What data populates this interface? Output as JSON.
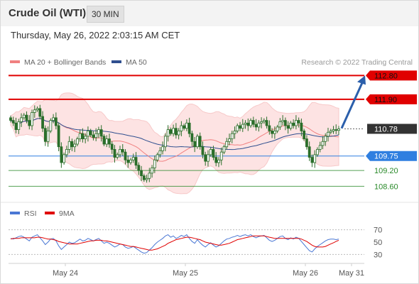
{
  "header": {
    "instrument": "Crude Oil (WTI)",
    "interval": "30 MIN",
    "timestamp": "Thursday, May 26, 2022 2:03:15 AM CET"
  },
  "legend": {
    "items": [
      {
        "label": "MA 20 + Bollinger Bands",
        "color": "#f08080"
      },
      {
        "label": "MA 50",
        "color": "#2f4f8f"
      }
    ],
    "credit": "Research © 2022 Trading Central"
  },
  "indicator_legend": {
    "items": [
      {
        "label": "RSI",
        "color": "#4a77d4"
      },
      {
        "label": "9MA",
        "color": "#e00000"
      }
    ]
  },
  "chart_data": [
    {
      "type": "candlestick",
      "x_labels": [
        "May 24",
        "May 25",
        "May 26",
        "May 31"
      ],
      "ylim": [
        108.1,
        113.0
      ],
      "current_price": 110.78,
      "levels": [
        {
          "value": 112.8,
          "label": "112.80",
          "color": "#e00000",
          "style": "tag"
        },
        {
          "value": 111.9,
          "label": "111.90",
          "color": "#e00000",
          "style": "tag"
        },
        {
          "value": 110.78,
          "label": "110.78",
          "color": "#333333",
          "style": "current"
        },
        {
          "value": 109.75,
          "label": "109.75",
          "color": "#2f7fe0",
          "style": "tag"
        },
        {
          "value": 109.2,
          "label": "109.20",
          "color": "#2a8a2a",
          "style": "text"
        },
        {
          "value": 108.6,
          "label": "108.60",
          "color": "#2a8a2a",
          "style": "text"
        }
      ],
      "projection": {
        "from": 110.8,
        "to": 112.8,
        "color": "#2b5fab"
      },
      "candles_close": [
        111.1,
        111.0,
        110.75,
        111.05,
        111.2,
        111.3,
        111.1,
        110.9,
        111.4,
        111.5,
        111.55,
        111.25,
        110.8,
        110.3,
        110.7,
        111.1,
        111.2,
        110.9,
        110.1,
        109.5,
        109.8,
        110.0,
        110.3,
        110.1,
        110.2,
        110.4,
        110.6,
        110.4,
        110.5,
        110.7,
        110.55,
        110.45,
        110.6,
        110.75,
        110.5,
        110.2,
        110.4,
        110.2,
        110.0,
        109.7,
        109.8,
        110.0,
        109.9,
        109.6,
        109.5,
        109.6,
        109.7,
        109.4,
        109.2,
        109.0,
        108.85,
        108.9,
        109.1,
        109.3,
        109.6,
        109.8,
        109.95,
        110.1,
        110.5,
        110.75,
        110.6,
        110.8,
        110.55,
        110.7,
        110.9,
        110.8,
        111.0,
        110.6,
        110.3,
        110.1,
        110.5,
        110.1,
        109.8,
        109.55,
        109.8,
        110.0,
        109.7,
        109.5,
        109.6,
        109.9,
        110.1,
        110.3,
        110.4,
        110.6,
        110.7,
        110.9,
        110.8,
        110.95,
        111.0,
        110.9,
        111.1,
        110.95,
        110.85,
        111.0,
        111.05,
        111.1,
        110.9,
        110.7,
        110.6,
        110.7,
        110.85,
        111.05,
        111.1,
        110.9,
        110.8,
        111.0,
        110.9,
        111.1,
        111.0,
        110.7,
        110.4,
        110.1,
        109.7,
        109.5,
        109.8,
        110.0,
        110.15,
        110.3,
        110.5,
        110.65,
        110.7,
        110.75,
        110.72,
        110.78
      ]
    },
    {
      "type": "line",
      "x_labels": [
        "May 24",
        "May 25",
        "May 26",
        "May 31"
      ],
      "ylim": [
        20,
        80
      ],
      "y_ticks": [
        70,
        50,
        30
      ],
      "series": [
        {
          "name": "RSI",
          "color": "#4a77d4",
          "values": [
            56,
            55,
            57,
            59,
            60,
            58,
            55,
            52,
            58,
            60,
            62,
            57,
            52,
            46,
            50,
            55,
            56,
            52,
            44,
            38,
            42,
            46,
            50,
            48,
            49,
            52,
            55,
            52,
            53,
            56,
            54,
            52,
            54,
            56,
            52,
            48,
            50,
            48,
            45,
            42,
            44,
            47,
            46,
            42,
            40,
            41,
            43,
            40,
            37,
            34,
            32,
            33,
            37,
            41,
            46,
            50,
            53,
            56,
            60,
            62,
            58,
            60,
            56,
            58,
            61,
            59,
            62,
            56,
            51,
            48,
            54,
            49,
            45,
            42,
            46,
            49,
            45,
            42,
            44,
            48,
            52,
            55,
            56,
            58,
            59,
            61,
            59,
            61,
            62,
            60,
            62,
            59,
            57,
            59,
            60,
            61,
            57,
            53,
            51,
            53,
            56,
            59,
            60,
            56,
            54,
            57,
            55,
            58,
            56,
            51,
            46,
            41,
            36,
            34,
            39,
            43,
            46,
            49,
            52,
            54,
            55,
            55,
            54,
            55
          ]
        },
        {
          "name": "9MA",
          "color": "#e00000",
          "values": [
            55,
            56,
            56,
            56,
            57,
            57,
            57,
            57,
            57,
            57,
            58,
            58,
            57,
            56,
            55,
            55,
            54,
            53,
            51,
            50,
            49,
            48,
            47,
            47,
            47,
            47,
            48,
            49,
            50,
            51,
            52,
            52,
            53,
            53,
            53,
            52,
            52,
            51,
            50,
            49,
            48,
            47,
            46,
            45,
            44,
            43,
            43,
            42,
            41,
            40,
            39,
            38,
            37,
            37,
            38,
            39,
            41,
            43,
            45,
            48,
            50,
            52,
            54,
            55,
            56,
            57,
            58,
            58,
            57,
            56,
            55,
            54,
            52,
            50,
            49,
            48,
            47,
            46,
            45,
            45,
            46,
            47,
            48,
            50,
            52,
            54,
            55,
            56,
            57,
            58,
            59,
            60,
            60,
            60,
            60,
            60,
            59,
            58,
            57,
            56,
            56,
            56,
            56,
            56,
            56,
            56,
            56,
            56,
            56,
            55,
            53,
            51,
            48,
            45,
            43,
            42,
            42,
            42,
            43,
            45,
            47,
            49,
            51,
            53
          ]
        }
      ]
    }
  ]
}
